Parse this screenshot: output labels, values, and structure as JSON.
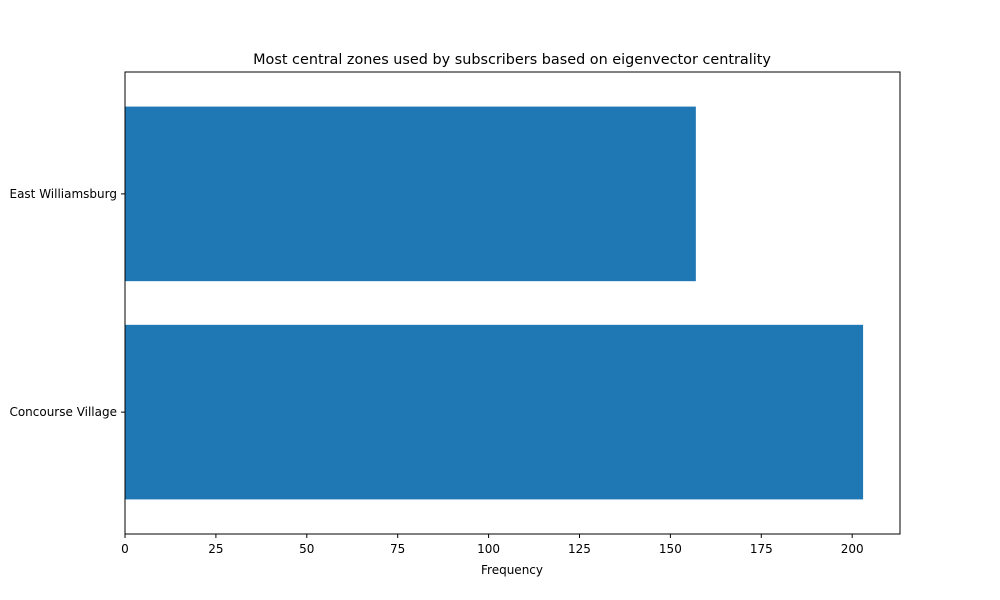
{
  "chart_data": {
    "type": "bar",
    "orientation": "horizontal",
    "title": "Most central zones used by subscribers based on eigenvector centrality",
    "xlabel": "Frequency",
    "ylabel": "",
    "categories": [
      "Concourse Village",
      "East Williamsburg"
    ],
    "values": [
      203,
      157
    ],
    "xlim": [
      0,
      213.15
    ],
    "xticks": [
      0,
      25,
      50,
      75,
      100,
      125,
      150,
      175,
      200
    ],
    "grid": false,
    "legend": "none",
    "bar_color": "#1f77b4"
  }
}
